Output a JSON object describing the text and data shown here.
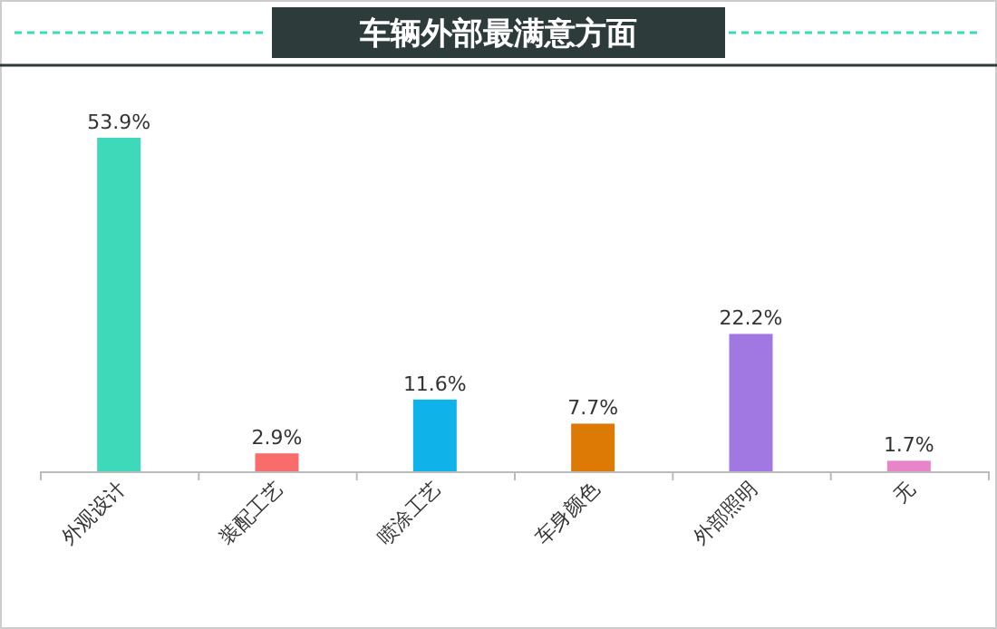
{
  "chart_data": {
    "type": "bar",
    "title": "车辆外部最满意方面",
    "categories": [
      "外观设计",
      "装配工艺",
      "喷涂工艺",
      "车身颜色",
      "外部照明",
      "无"
    ],
    "values": [
      53.9,
      2.9,
      11.6,
      7.7,
      22.2,
      1.7
    ],
    "value_labels": [
      "53.9%",
      "2.9%",
      "11.6%",
      "7.7%",
      "22.2%",
      "1.7%"
    ],
    "colors": [
      "#3dd9b9",
      "#f86c6c",
      "#10b2ea",
      "#dd7a06",
      "#a177e2",
      "#e884c8"
    ]
  }
}
